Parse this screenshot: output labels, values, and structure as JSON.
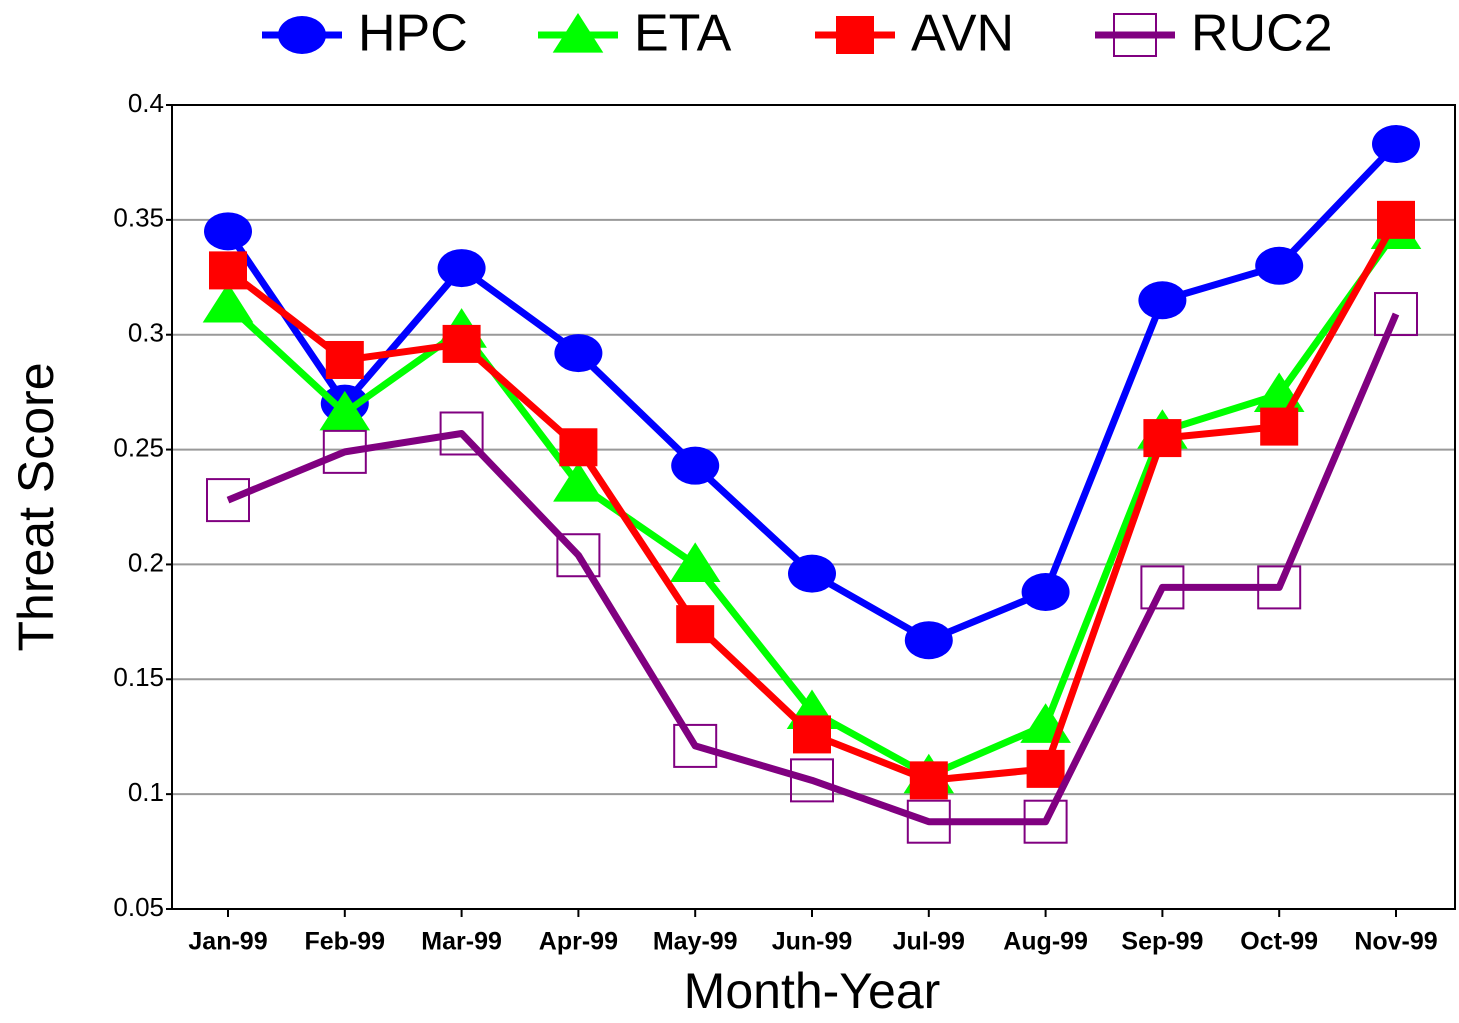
{
  "chart_data": {
    "type": "line",
    "x_label": "Month-Year",
    "y_label": "Threat Score",
    "categories": [
      "Jan-99",
      "Feb-99",
      "Mar-99",
      "Apr-99",
      "May-99",
      "Jun-99",
      "Jul-99",
      "Aug-99",
      "Sep-99",
      "Oct-99",
      "Nov-99"
    ],
    "series": [
      {
        "name": "HPC",
        "color": "#0000ff",
        "marker": "circle",
        "values": [
          0.345,
          0.27,
          0.329,
          0.292,
          0.243,
          0.196,
          0.167,
          0.188,
          0.315,
          0.33,
          0.383
        ]
      },
      {
        "name": "ETA",
        "color": "#00ff00",
        "marker": "triangle",
        "values": [
          0.313,
          0.266,
          0.302,
          0.235,
          0.2,
          0.136,
          0.108,
          0.13,
          0.258,
          0.274,
          0.345
        ]
      },
      {
        "name": "AVN",
        "color": "#ff0000",
        "marker": "square",
        "values": [
          0.328,
          0.289,
          0.296,
          0.251,
          0.174,
          0.126,
          0.106,
          0.111,
          0.255,
          0.26,
          0.35
        ]
      },
      {
        "name": "RUC2",
        "color": "#800080",
        "marker": "open-square",
        "values": [
          0.228,
          0.249,
          0.257,
          0.204,
          0.121,
          0.106,
          0.088,
          0.088,
          0.19,
          0.19,
          0.309
        ]
      }
    ],
    "ylim": [
      0.05,
      0.4
    ],
    "yticks": [
      0.05,
      0.1,
      0.15,
      0.2,
      0.25,
      0.3,
      0.35,
      0.4
    ],
    "grid": true,
    "legend": "top"
  }
}
